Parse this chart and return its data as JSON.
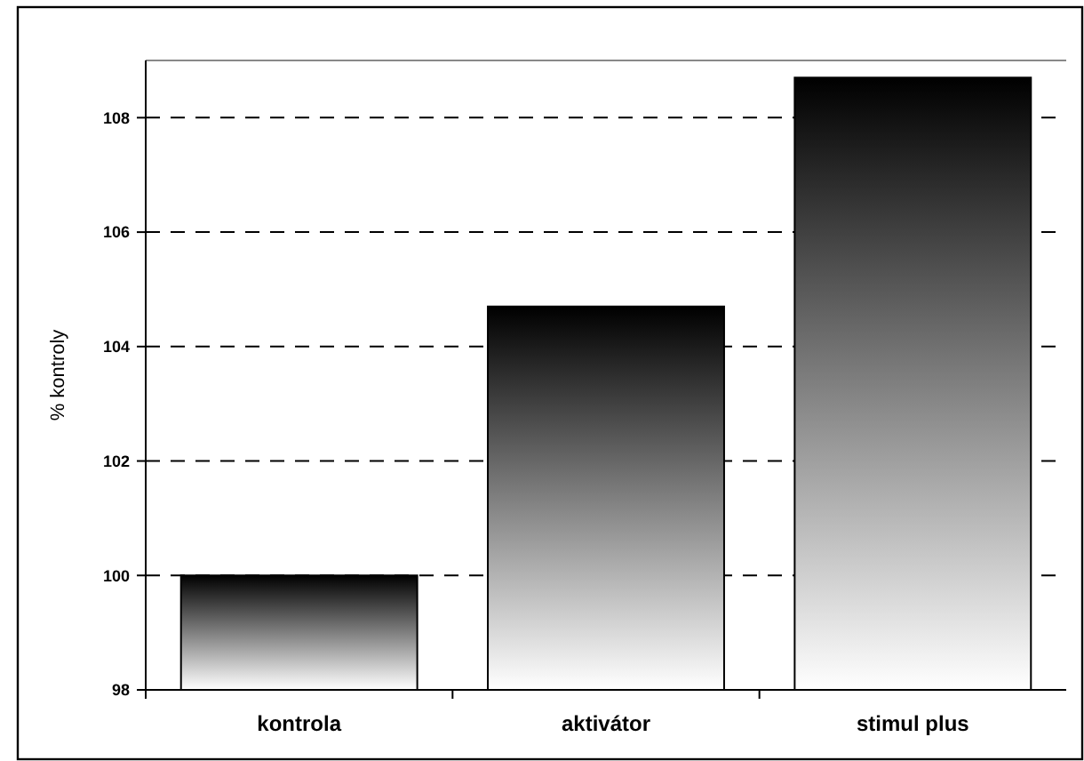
{
  "chart_data": {
    "type": "bar",
    "ylabel": "% kontroly",
    "categories": [
      "kontrola",
      "aktivátor",
      "stimul plus"
    ],
    "values": [
      100,
      104.7,
      108.7
    ],
    "color": "#000000",
    "ylim": [
      98,
      109
    ],
    "yticks": [
      98,
      100,
      102,
      104,
      106,
      108
    ],
    "grid": "y"
  }
}
